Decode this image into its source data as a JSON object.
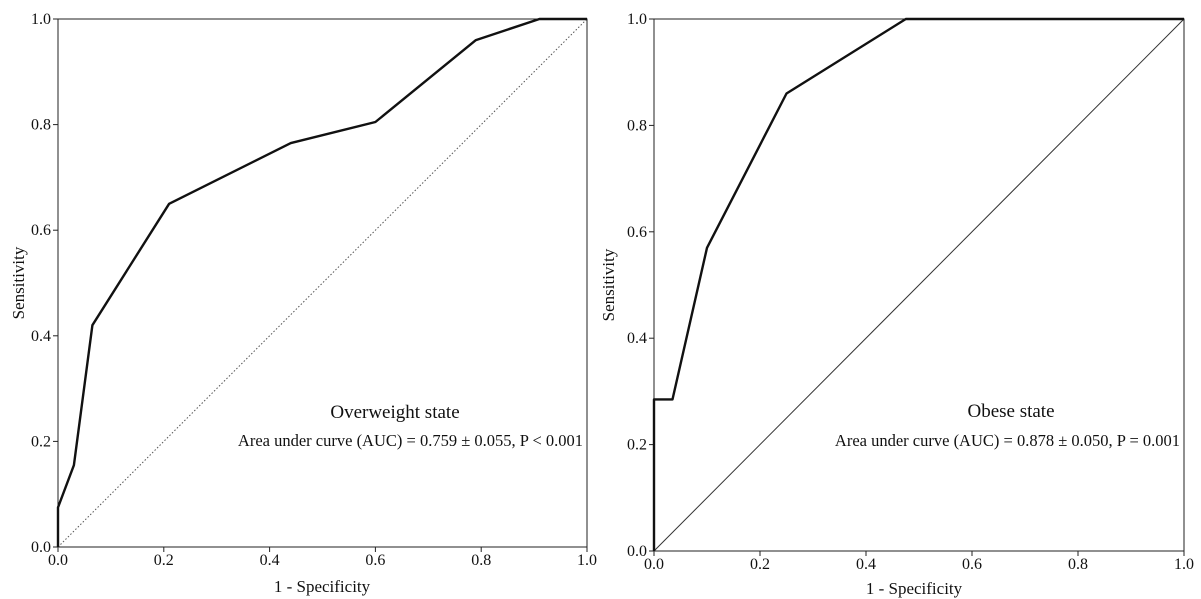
{
  "chart_data": [
    {
      "type": "line",
      "x_ticks": [
        "0.0",
        "0.2",
        "0.4",
        "0.6",
        "0.8",
        "1.0"
      ],
      "y_ticks": [
        "0.0",
        "0.2",
        "0.4",
        "0.6",
        "0.8",
        "1.0"
      ],
      "xlabel": "1 - Specificity",
      "ylabel": "Sensitivity",
      "xlim": [
        0,
        1
      ],
      "ylim": [
        0,
        1
      ],
      "annotation_title": "Overweight state",
      "annotation_text": "Area under curve (AUC) = 0.759 ± 0.055, P < 0.001",
      "reference_line": "dotted",
      "series": [
        {
          "x": [
            0.0,
            0.0,
            0.03,
            0.065,
            0.21,
            0.44,
            0.6,
            0.79,
            0.91,
            1.0
          ],
          "y": [
            0.0,
            0.075,
            0.155,
            0.42,
            0.65,
            0.765,
            0.805,
            0.96,
            1.0,
            1.0
          ]
        }
      ]
    },
    {
      "type": "line",
      "x_ticks": [
        "0.0",
        "0.2",
        "0.4",
        "0.6",
        "0.8",
        "1.0"
      ],
      "y_ticks": [
        "0.0",
        "0.2",
        "0.4",
        "0.6",
        "0.8",
        "1.0"
      ],
      "xlabel": "1 - Specificity",
      "ylabel": "Sensitivity",
      "xlim": [
        0,
        1
      ],
      "ylim": [
        0,
        1
      ],
      "annotation_title": "Obese state",
      "annotation_text": "Area under curve (AUC) = 0.878 ± 0.050, P = 0.001",
      "reference_line": "solid",
      "series": [
        {
          "x": [
            0.0,
            0.0,
            0.035,
            0.1,
            0.25,
            0.475,
            1.0
          ],
          "y": [
            0.0,
            0.285,
            0.285,
            0.57,
            0.86,
            1.0,
            1.0
          ]
        }
      ]
    }
  ]
}
